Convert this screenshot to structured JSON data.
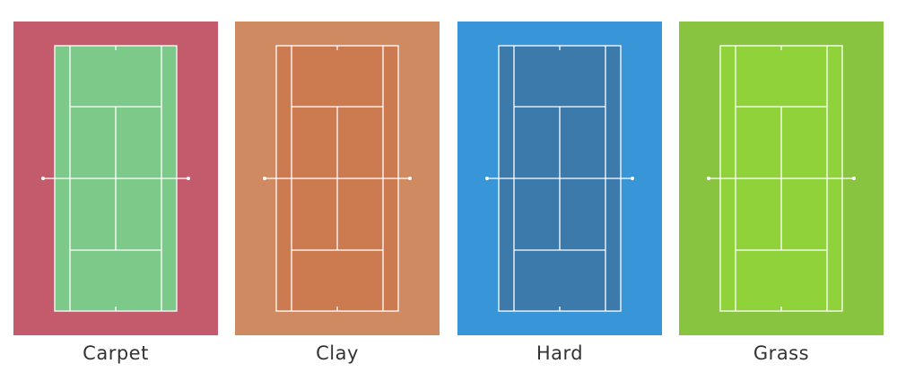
{
  "courts": [
    {
      "label": "Carpet",
      "surround_color": "#c45b6c",
      "court_color": "#7dc98a"
    },
    {
      "label": "Clay",
      "surround_color": "#cf8a62",
      "court_color": "#cc7a50"
    },
    {
      "label": "Hard",
      "surround_color": "#3896d8",
      "court_color": "#3b7aaa"
    },
    {
      "label": "Grass",
      "surround_color": "#88c43f",
      "court_color": "#8fd23a"
    }
  ]
}
